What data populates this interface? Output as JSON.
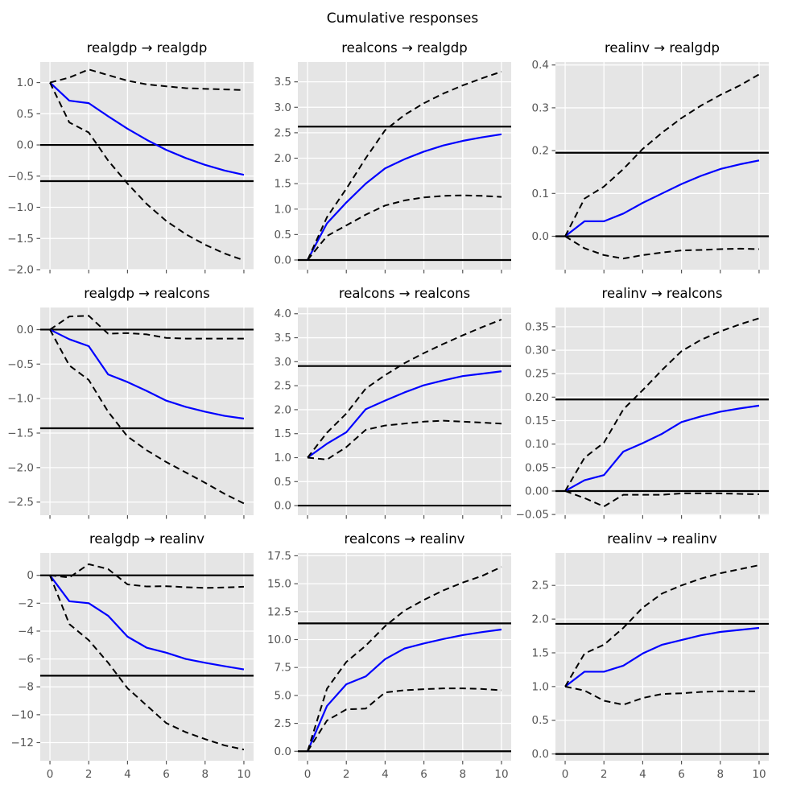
{
  "figure_title": "Cumulative responses",
  "style": {
    "page_bg": "#ffffff",
    "axes_bg": "#e5e5e5",
    "grid_color": "#ffffff",
    "tick_color": "#555555",
    "title_color": "#000000",
    "response_color": "#0000ff",
    "band_color": "#000000",
    "hline_color": "#000000"
  },
  "x_axis": {
    "x": [
      0,
      1,
      2,
      3,
      4,
      5,
      6,
      7,
      8,
      9,
      10
    ],
    "xlim": [
      -0.5,
      10.5
    ],
    "xticks": [
      0,
      2,
      4,
      6,
      8,
      10
    ],
    "xtick_labels": [
      "0",
      "2",
      "4",
      "6",
      "8",
      "10"
    ]
  },
  "chart_data": [
    {
      "type": "line",
      "title": "realgdp → realgdp",
      "series": [
        {
          "name": "response-line",
          "label": "cumulative response",
          "style": "solid",
          "color": "#0000ff",
          "values": [
            1.0,
            0.71,
            0.67,
            0.46,
            0.26,
            0.08,
            -0.08,
            -0.21,
            -0.32,
            -0.41,
            -0.48
          ]
        },
        {
          "name": "upper-band-line",
          "label": "upper error band",
          "style": "dashed",
          "color": "#000000",
          "values": [
            1.0,
            1.08,
            1.21,
            1.12,
            1.03,
            0.97,
            0.94,
            0.91,
            0.9,
            0.89,
            0.88
          ]
        },
        {
          "name": "lower-band-line",
          "label": "lower error band",
          "style": "dashed",
          "color": "#000000",
          "values": [
            1.0,
            0.36,
            0.2,
            -0.25,
            -0.62,
            -0.95,
            -1.22,
            -1.43,
            -1.6,
            -1.74,
            -1.85
          ]
        }
      ],
      "hlines": [
        0.0,
        -0.58
      ],
      "ylim": [
        -2.0,
        1.33
      ],
      "yticks": [
        1.0,
        0.5,
        0.0,
        -0.5,
        -1.0,
        -1.5,
        -2.0
      ],
      "ytick_labels": [
        "1.0",
        "0.5",
        "0.0",
        "−0.5",
        "−1.0",
        "−1.5",
        "−2.0"
      ],
      "show_xtick_labels": false
    },
    {
      "type": "line",
      "title": "realcons → realgdp",
      "series": [
        {
          "name": "response-line",
          "label": "cumulative response",
          "style": "solid",
          "color": "#0000ff",
          "values": [
            0.0,
            0.72,
            1.13,
            1.5,
            1.8,
            1.98,
            2.13,
            2.25,
            2.34,
            2.41,
            2.47
          ]
        },
        {
          "name": "upper-band-line",
          "label": "upper error band",
          "style": "dashed",
          "color": "#000000",
          "values": [
            0.0,
            0.84,
            1.4,
            2.0,
            2.55,
            2.85,
            3.08,
            3.27,
            3.43,
            3.57,
            3.7
          ]
        },
        {
          "name": "lower-band-line",
          "label": "lower error band",
          "style": "dashed",
          "color": "#000000",
          "values": [
            0.0,
            0.47,
            0.68,
            0.89,
            1.07,
            1.17,
            1.23,
            1.26,
            1.27,
            1.26,
            1.24
          ]
        }
      ],
      "hlines": [
        0.0,
        2.62
      ],
      "ylim": [
        -0.19,
        3.89
      ],
      "yticks": [
        0.0,
        0.5,
        1.0,
        1.5,
        2.0,
        2.5,
        3.0,
        3.5
      ],
      "ytick_labels": [
        "0.0",
        "0.5",
        "1.0",
        "1.5",
        "2.0",
        "2.5",
        "3.0",
        "3.5"
      ],
      "show_xtick_labels": false
    },
    {
      "type": "line",
      "title": "realinv → realgdp",
      "series": [
        {
          "name": "response-line",
          "label": "cumulative response",
          "style": "solid",
          "color": "#0000ff",
          "values": [
            0.0,
            0.035,
            0.035,
            0.053,
            0.078,
            0.1,
            0.122,
            0.141,
            0.157,
            0.168,
            0.177
          ]
        },
        {
          "name": "upper-band-line",
          "label": "upper error band",
          "style": "dashed",
          "color": "#000000",
          "values": [
            0.0,
            0.088,
            0.116,
            0.157,
            0.204,
            0.242,
            0.276,
            0.305,
            0.33,
            0.352,
            0.378
          ]
        },
        {
          "name": "lower-band-line",
          "label": "lower error band",
          "style": "dashed",
          "color": "#000000",
          "values": [
            0.0,
            -0.028,
            -0.044,
            -0.052,
            -0.044,
            -0.038,
            -0.033,
            -0.032,
            -0.03,
            -0.029,
            -0.03
          ]
        }
      ],
      "hlines": [
        0.0,
        0.195
      ],
      "ylim": [
        -0.078,
        0.407
      ],
      "yticks": [
        0.0,
        0.1,
        0.2,
        0.3,
        0.4
      ],
      "ytick_labels": [
        "0.0",
        "0.1",
        "0.2",
        "0.3",
        "0.4"
      ],
      "show_xtick_labels": false
    },
    {
      "type": "line",
      "title": "realgdp → realcons",
      "series": [
        {
          "name": "response-line",
          "label": "cumulative response",
          "style": "solid",
          "color": "#0000ff",
          "values": [
            0.0,
            -0.14,
            -0.24,
            -0.65,
            -0.76,
            -0.89,
            -1.03,
            -1.12,
            -1.19,
            -1.25,
            -1.29
          ]
        },
        {
          "name": "upper-band-line",
          "label": "upper error band",
          "style": "dashed",
          "color": "#000000",
          "values": [
            0.0,
            0.19,
            0.2,
            -0.06,
            -0.05,
            -0.07,
            -0.12,
            -0.13,
            -0.13,
            -0.13,
            -0.13
          ]
        },
        {
          "name": "lower-band-line",
          "label": "lower error band",
          "style": "dashed",
          "color": "#000000",
          "values": [
            0.0,
            -0.52,
            -0.73,
            -1.19,
            -1.55,
            -1.75,
            -1.92,
            -2.07,
            -2.22,
            -2.38,
            -2.52
          ]
        }
      ],
      "hlines": [
        0.0,
        -1.43
      ],
      "ylim": [
        -2.69,
        0.32
      ],
      "yticks": [
        0.0,
        -0.5,
        -1.0,
        -1.5,
        -2.0,
        -2.5
      ],
      "ytick_labels": [
        "0.0",
        "−0.5",
        "−1.0",
        "−1.5",
        "−2.0",
        "−2.5"
      ],
      "show_xtick_labels": false
    },
    {
      "type": "line",
      "title": "realcons → realcons",
      "series": [
        {
          "name": "response-line",
          "label": "cumulative response",
          "style": "solid",
          "color": "#0000ff",
          "values": [
            1.0,
            1.29,
            1.53,
            2.01,
            2.19,
            2.36,
            2.51,
            2.61,
            2.7,
            2.75,
            2.8
          ]
        },
        {
          "name": "upper-band-line",
          "label": "upper error band",
          "style": "dashed",
          "color": "#000000",
          "values": [
            1.0,
            1.52,
            1.92,
            2.44,
            2.72,
            2.97,
            3.18,
            3.37,
            3.55,
            3.72,
            3.88
          ]
        },
        {
          "name": "lower-band-line",
          "label": "lower error band",
          "style": "dashed",
          "color": "#000000",
          "values": [
            1.0,
            0.96,
            1.22,
            1.58,
            1.67,
            1.71,
            1.75,
            1.77,
            1.75,
            1.73,
            1.71
          ]
        }
      ],
      "hlines": [
        0.0,
        2.91
      ],
      "ylim": [
        -0.2,
        4.13
      ],
      "yticks": [
        0.0,
        0.5,
        1.0,
        1.5,
        2.0,
        2.5,
        3.0,
        3.5,
        4.0
      ],
      "ytick_labels": [
        "0.0",
        "0.5",
        "1.0",
        "1.5",
        "2.0",
        "2.5",
        "3.0",
        "3.5",
        "4.0"
      ],
      "show_xtick_labels": false
    },
    {
      "type": "line",
      "title": "realinv → realcons",
      "series": [
        {
          "name": "response-line",
          "label": "cumulative response",
          "style": "solid",
          "color": "#0000ff",
          "values": [
            0.0,
            0.023,
            0.034,
            0.084,
            0.102,
            0.122,
            0.147,
            0.159,
            0.169,
            0.176,
            0.182
          ]
        },
        {
          "name": "upper-band-line",
          "label": "upper error band",
          "style": "dashed",
          "color": "#000000",
          "values": [
            0.0,
            0.071,
            0.103,
            0.174,
            0.215,
            0.258,
            0.298,
            0.322,
            0.34,
            0.355,
            0.368
          ]
        },
        {
          "name": "lower-band-line",
          "label": "lower error band",
          "style": "dashed",
          "color": "#000000",
          "values": [
            0.0,
            -0.015,
            -0.033,
            -0.008,
            -0.008,
            -0.008,
            -0.005,
            -0.005,
            -0.005,
            -0.006,
            -0.007
          ]
        }
      ],
      "hlines": [
        0.0,
        0.195
      ],
      "ylim": [
        -0.0515,
        0.391
      ],
      "yticks": [
        -0.05,
        0.0,
        0.05,
        0.1,
        0.15,
        0.2,
        0.25,
        0.3,
        0.35
      ],
      "ytick_labels": [
        "−0.05",
        "0.00",
        "0.05",
        "0.10",
        "0.15",
        "0.20",
        "0.25",
        "0.30",
        "0.35"
      ],
      "show_xtick_labels": false
    },
    {
      "type": "line",
      "title": "realgdp → realinv",
      "series": [
        {
          "name": "response-line",
          "label": "cumulative response",
          "style": "solid",
          "color": "#0000ff",
          "values": [
            0.0,
            -1.86,
            -2.0,
            -2.9,
            -4.4,
            -5.2,
            -5.55,
            -6.0,
            -6.27,
            -6.52,
            -6.75
          ]
        },
        {
          "name": "upper-band-line",
          "label": "upper error band",
          "style": "dashed",
          "color": "#000000",
          "values": [
            0.0,
            -0.15,
            0.8,
            0.45,
            -0.65,
            -0.8,
            -0.78,
            -0.85,
            -0.9,
            -0.87,
            -0.82
          ]
        },
        {
          "name": "lower-band-line",
          "label": "lower error band",
          "style": "dashed",
          "color": "#000000",
          "values": [
            0.0,
            -3.5,
            -4.65,
            -6.27,
            -8.1,
            -9.35,
            -10.6,
            -11.25,
            -11.75,
            -12.2,
            -12.5
          ]
        }
      ],
      "hlines": [
        0.0,
        -7.2
      ],
      "ylim": [
        -13.3,
        1.6
      ],
      "yticks": [
        0,
        -2,
        -4,
        -6,
        -8,
        -10,
        -12
      ],
      "ytick_labels": [
        "0",
        "−2",
        "−4",
        "−6",
        "−8",
        "−10",
        "−12"
      ],
      "show_xtick_labels": true
    },
    {
      "type": "line",
      "title": "realcons → realinv",
      "series": [
        {
          "name": "response-line",
          "label": "cumulative response",
          "style": "solid",
          "color": "#0000ff",
          "values": [
            0.0,
            4.05,
            6.0,
            6.7,
            8.25,
            9.2,
            9.65,
            10.05,
            10.4,
            10.67,
            10.9
          ]
        },
        {
          "name": "upper-band-line",
          "label": "upper error band",
          "style": "dashed",
          "color": "#000000",
          "values": [
            0.0,
            5.6,
            8.0,
            9.45,
            11.2,
            12.6,
            13.55,
            14.4,
            15.1,
            15.7,
            16.5
          ]
        },
        {
          "name": "lower-band-line",
          "label": "lower error band",
          "style": "dashed",
          "color": "#000000",
          "values": [
            0.0,
            2.75,
            3.75,
            3.82,
            5.27,
            5.46,
            5.56,
            5.63,
            5.63,
            5.58,
            5.46
          ]
        }
      ],
      "hlines": [
        0.0,
        11.45
      ],
      "ylim": [
        -0.845,
        17.745
      ],
      "yticks": [
        0.0,
        2.5,
        5.0,
        7.5,
        10.0,
        12.5,
        15.0,
        17.5
      ],
      "ytick_labels": [
        "0.0",
        "2.5",
        "5.0",
        "7.5",
        "10.0",
        "12.5",
        "15.0",
        "17.5"
      ],
      "show_xtick_labels": true
    },
    {
      "type": "line",
      "title": "realinv → realinv",
      "series": [
        {
          "name": "response-line",
          "label": "cumulative response",
          "style": "solid",
          "color": "#0000ff",
          "values": [
            1.0,
            1.22,
            1.22,
            1.31,
            1.49,
            1.62,
            1.69,
            1.76,
            1.81,
            1.84,
            1.87
          ]
        },
        {
          "name": "upper-band-line",
          "label": "upper error band",
          "style": "dashed",
          "color": "#000000",
          "values": [
            1.0,
            1.49,
            1.62,
            1.87,
            2.17,
            2.38,
            2.5,
            2.6,
            2.68,
            2.74,
            2.8
          ]
        },
        {
          "name": "lower-band-line",
          "label": "lower error band",
          "style": "dashed",
          "color": "#000000",
          "values": [
            1.0,
            0.94,
            0.79,
            0.73,
            0.83,
            0.89,
            0.9,
            0.92,
            0.93,
            0.93,
            0.93
          ]
        }
      ],
      "hlines": [
        0.0,
        1.93
      ],
      "ylim": [
        -0.1,
        2.98
      ],
      "yticks": [
        0.0,
        0.5,
        1.0,
        1.5,
        2.0,
        2.5
      ],
      "ytick_labels": [
        "0.0",
        "0.5",
        "1.0",
        "1.5",
        "2.0",
        "2.5"
      ],
      "show_xtick_labels": true
    }
  ]
}
